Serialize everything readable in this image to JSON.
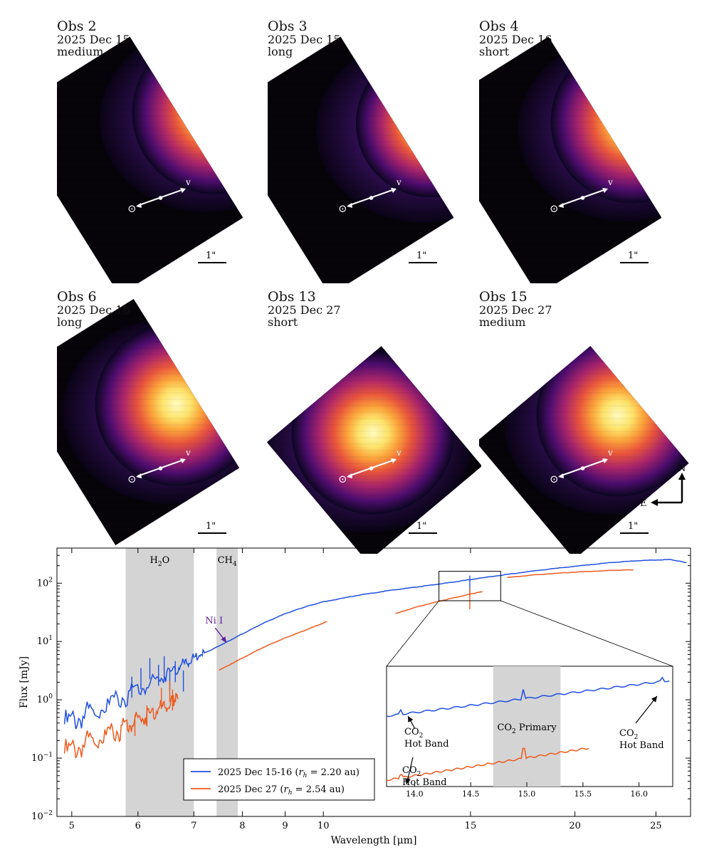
{
  "panels": [
    {
      "obs": "Obs 2",
      "date": "2025 Dec 15",
      "mode": "medium",
      "sun": "⊙",
      "vel": "v",
      "scale": "1\""
    },
    {
      "obs": "Obs 3",
      "date": "2025 Dec 15",
      "mode": "long",
      "sun": "⊙",
      "vel": "v",
      "scale": "1\""
    },
    {
      "obs": "Obs 4",
      "date": "2025 Dec 16",
      "mode": "short",
      "sun": "⊙",
      "vel": "v",
      "scale": "1\""
    },
    {
      "obs": "Obs 6",
      "date": "2025 Dec 16",
      "mode": "long",
      "sun": "⊙",
      "vel": "v",
      "scale": "1\""
    },
    {
      "obs": "Obs 13",
      "date": "2025 Dec 27",
      "mode": "short",
      "sun": "⊙",
      "vel": "v",
      "scale": "1\""
    },
    {
      "obs": "Obs 15",
      "date": "2025 Dec 27",
      "mode": "medium",
      "sun": "⊙",
      "vel": "v",
      "scale": "1\""
    }
  ],
  "compass": {
    "north": "N",
    "east": "E"
  },
  "colors": {
    "series1": "#1f4fe0",
    "series2": "#ee5a1c",
    "shade": "#d4d4d4",
    "nickel": "#5b1fa0"
  },
  "chart_data": {
    "type": "line",
    "xlabel": "Wavelength [μm]",
    "ylabel": "Flux [mJy]",
    "xscale": "log",
    "yscale": "log",
    "xlim": [
      4.8,
      27.5
    ],
    "ylim": [
      0.01,
      400
    ],
    "xticks": [
      5,
      6,
      7,
      8,
      9,
      10,
      15,
      20,
      25
    ],
    "yticks": [
      {
        "value": 0.01,
        "mant": "10",
        "exp": "−2"
      },
      {
        "value": 0.1,
        "mant": "10",
        "exp": "−1"
      },
      {
        "value": 1,
        "mant": "10",
        "exp": "0"
      },
      {
        "value": 10,
        "mant": "10",
        "exp": "1"
      },
      {
        "value": 100,
        "mant": "10",
        "exp": "2"
      }
    ],
    "bands": [
      {
        "from": 5.8,
        "to": 7.0,
        "label": "H",
        "sub": "2",
        "rest": "O"
      },
      {
        "from": 7.45,
        "to": 7.9,
        "label": "CH",
        "sub": "4",
        "rest": ""
      }
    ],
    "annotation": {
      "text": "Ni I",
      "x": 7.6,
      "y": 9.2
    },
    "series": [
      {
        "name": "2025 Dec 15-16",
        "rh": "2.20 au",
        "segments": [
          [
            [
              4.9,
              0.38
            ],
            [
              5.3,
              0.62
            ],
            [
              5.8,
              1.15
            ],
            [
              6.3,
              2.1
            ],
            [
              6.7,
              3.6
            ],
            [
              7.0,
              5.3
            ],
            [
              7.3,
              6.9
            ],
            [
              7.6,
              9.2
            ],
            [
              8.0,
              13.5
            ],
            [
              8.5,
              21
            ],
            [
              9.0,
              30
            ],
            [
              9.5,
              39
            ],
            [
              10.0,
              48
            ],
            [
              11.0,
              62
            ],
            [
              12.0,
              75
            ],
            [
              13.0,
              87
            ],
            [
              14.0,
              100
            ],
            [
              15.0,
              115
            ],
            [
              16.5,
              140
            ],
            [
              18.0,
              165
            ],
            [
              20.0,
              195
            ],
            [
              22.0,
              225
            ],
            [
              24.0,
              245
            ],
            [
              26.0,
              255
            ],
            [
              27.2,
              225
            ]
          ]
        ],
        "spikes": [
          [
            5.9,
            2.5
          ],
          [
            6.05,
            3.5
          ],
          [
            6.2,
            5.2
          ],
          [
            6.35,
            4.0
          ],
          [
            6.45,
            5.6
          ],
          [
            6.55,
            3.3
          ],
          [
            6.65,
            4.6
          ],
          [
            6.8,
            3.2
          ],
          [
            14.97,
            135
          ]
        ]
      },
      {
        "name": "2025 Dec 27",
        "rh": "2.54 au",
        "segments": [
          [
            [
              4.9,
              0.12
            ],
            [
              5.3,
              0.2
            ],
            [
              5.7,
              0.3
            ],
            [
              6.0,
              0.45
            ],
            [
              6.3,
              0.65
            ],
            [
              6.6,
              0.95
            ],
            [
              6.7,
              1.1
            ]
          ],
          [
            [
              7.5,
              3.2
            ],
            [
              8.0,
              5.2
            ],
            [
              8.5,
              8.1
            ],
            [
              9.0,
              11.5
            ],
            [
              9.5,
              15.5
            ],
            [
              10.1,
              22
            ]
          ],
          [
            [
              12.2,
              30
            ],
            [
              13.0,
              40
            ],
            [
              14.0,
              52
            ],
            [
              15.0,
              65
            ],
            [
              15.5,
              72
            ]
          ],
          [
            [
              16.6,
              125
            ],
            [
              18.0,
              140
            ],
            [
              20.0,
              155
            ],
            [
              22.0,
              165
            ],
            [
              23.5,
              170
            ]
          ]
        ],
        "spikes": [
          [
            5.95,
            0.55
          ],
          [
            6.15,
            0.8
          ],
          [
            6.4,
            1.6
          ],
          [
            6.55,
            2.1
          ],
          [
            6.6,
            1.5
          ],
          [
            14.97,
            82
          ]
        ]
      }
    ],
    "legend": {
      "placement": "lower-center",
      "var": "r",
      "varsub": "h"
    },
    "inset": {
      "xlim": [
        13.75,
        16.3
      ],
      "xticks": [
        14.0,
        14.5,
        15.0,
        15.5,
        16.0
      ],
      "band": {
        "from": 14.7,
        "to": 15.3,
        "label": "CO",
        "sub": "2",
        "rest": " Primary"
      },
      "labels": [
        {
          "text": "CO",
          "sub": "2",
          "line2": "Hot Band"
        },
        {
          "text": "CO",
          "sub": "2",
          "line2": "Hot Band"
        },
        {
          "text": "CO",
          "sub": "2",
          "line2": "Hot Band"
        }
      ]
    }
  }
}
